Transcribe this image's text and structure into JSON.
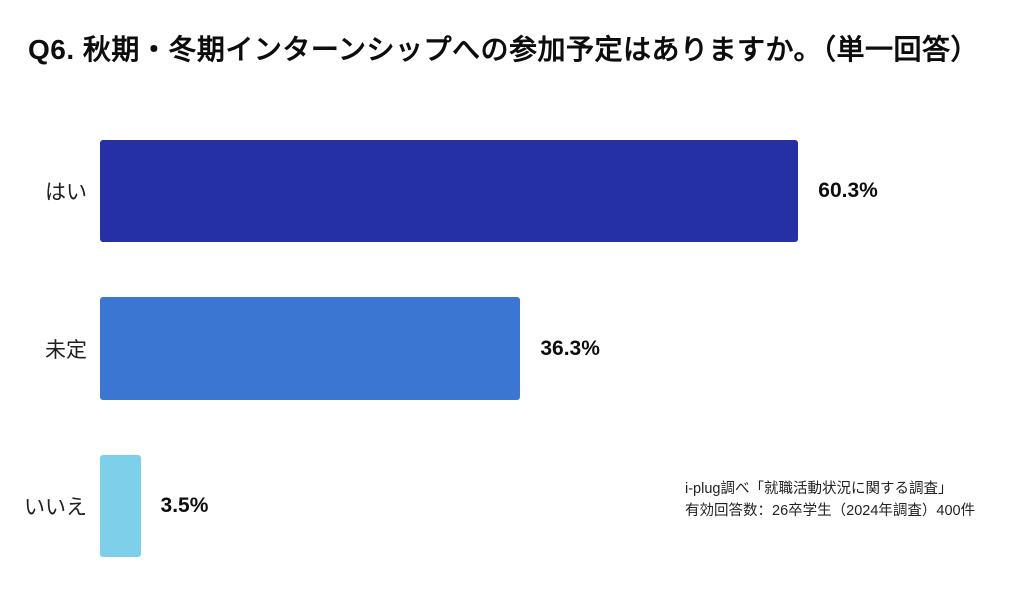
{
  "page": {
    "background_color": "#ffffff"
  },
  "title": "Q6. 秋期・冬期インターンシップへの参加予定はありますか。（単一回答）",
  "source_note": {
    "line1": "i-plug調べ「就職活動状況に関する調査」",
    "line2": "有効回答数：26卒学生（2024年調査）400件"
  },
  "chart_data": {
    "type": "bar",
    "orientation": "horizontal",
    "title": "Q6. 秋期・冬期インターンシップへの参加予定はありますか。（単一回答）",
    "categories": [
      "はい",
      "未定",
      "いいえ"
    ],
    "values": [
      60.3,
      36.3,
      3.5
    ],
    "value_labels": [
      "60.3%",
      "36.3%",
      "3.5%"
    ],
    "bar_colors": [
      "#2530A6",
      "#3B76D3",
      "#7DCFEA"
    ],
    "xlabel": "",
    "ylabel": "",
    "xlim": [
      0,
      65
    ],
    "grid": false,
    "legend": false,
    "value_label_position": "outside-end"
  }
}
